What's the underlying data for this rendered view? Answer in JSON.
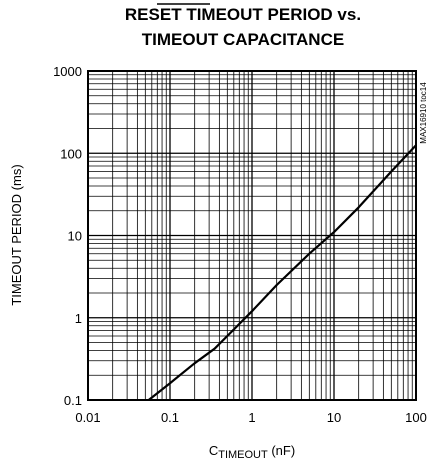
{
  "chart_data": {
    "type": "line",
    "title_overbar": "RESET",
    "title_line1_rest": " TIMEOUT PERIOD vs.",
    "title_line2": "TIMEOUT CAPACITANCE",
    "ylabel": "TIMEOUT PERIOD (ms)",
    "xlabel_main": "C",
    "xlabel_sub": "TIMEOUT",
    "xlabel_unit": " (nF)",
    "part_label": "MAX16910 toc14",
    "x_scale": "log",
    "y_scale": "log",
    "xlim": [
      0.01,
      100
    ],
    "ylim": [
      0.1,
      1000
    ],
    "grid": true,
    "x_ticks": [
      {
        "value": 0.01,
        "label": "0.01"
      },
      {
        "value": 0.1,
        "label": "0.1"
      },
      {
        "value": 1,
        "label": "1"
      },
      {
        "value": 10,
        "label": "10"
      },
      {
        "value": 100,
        "label": "100"
      }
    ],
    "y_ticks": [
      {
        "value": 0.1,
        "label": "0.1"
      },
      {
        "value": 1,
        "label": "1"
      },
      {
        "value": 10,
        "label": "10"
      },
      {
        "value": 100,
        "label": "100"
      },
      {
        "value": 1000,
        "label": "1000"
      }
    ],
    "series": [
      {
        "color": "#000000",
        "x": [
          0.055,
          0.1,
          0.2,
          0.35,
          0.5,
          1,
          2,
          5,
          10,
          20,
          50,
          100
        ],
        "y": [
          0.1,
          0.16,
          0.28,
          0.42,
          0.6,
          1.2,
          2.5,
          6,
          11,
          22,
          60,
          125
        ]
      }
    ]
  }
}
